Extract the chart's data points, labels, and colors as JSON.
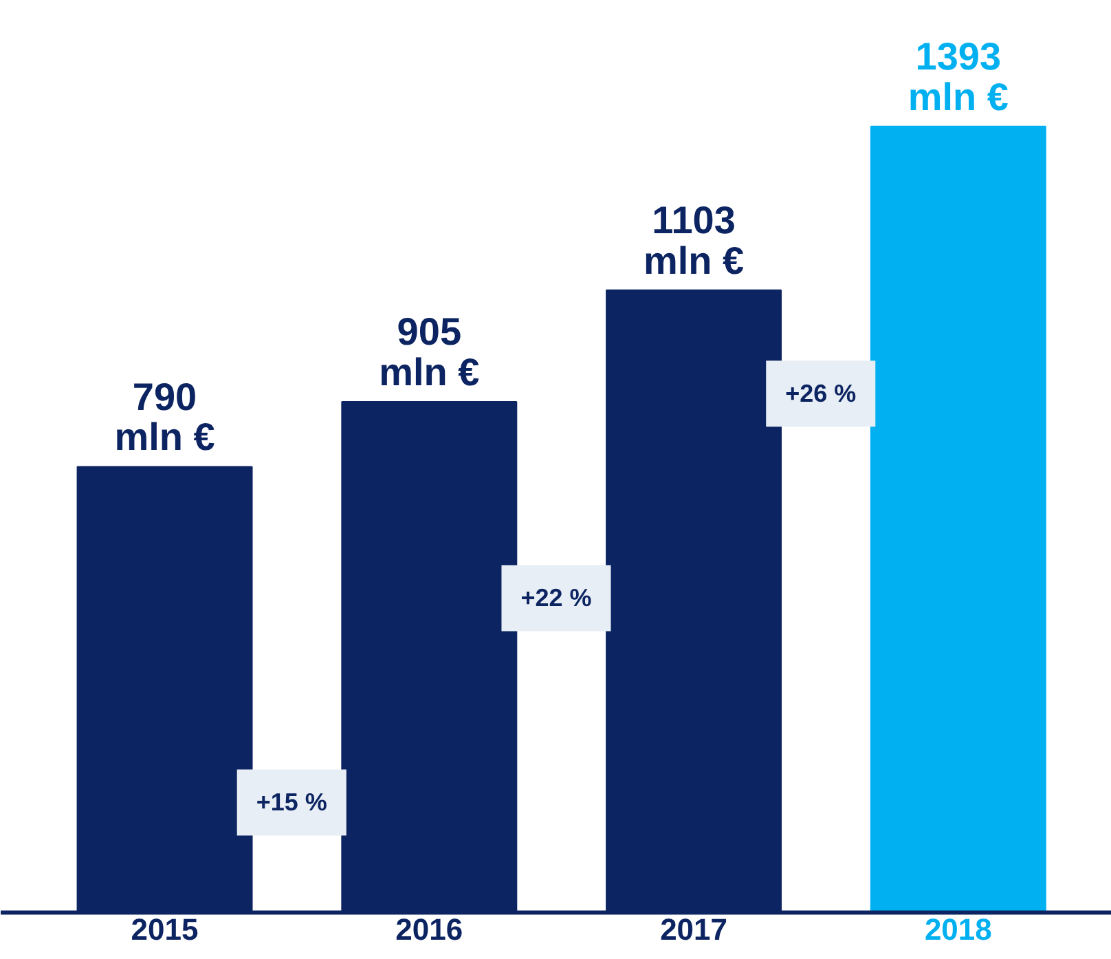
{
  "chart_data": {
    "type": "bar",
    "categories": [
      "2015",
      "2016",
      "2017",
      "2018"
    ],
    "values": [
      790,
      905,
      1103,
      1393
    ],
    "colors": [
      "#0c2461",
      "#0c2461",
      "#0c2461",
      "#00b0f0"
    ],
    "value_labels": [
      "790 mln €",
      "905 mln €",
      "1103 mln €",
      "1393 mln €"
    ],
    "annotations": [
      "+15 %",
      "+22 %",
      "+26 %"
    ],
    "grid": false
  }
}
